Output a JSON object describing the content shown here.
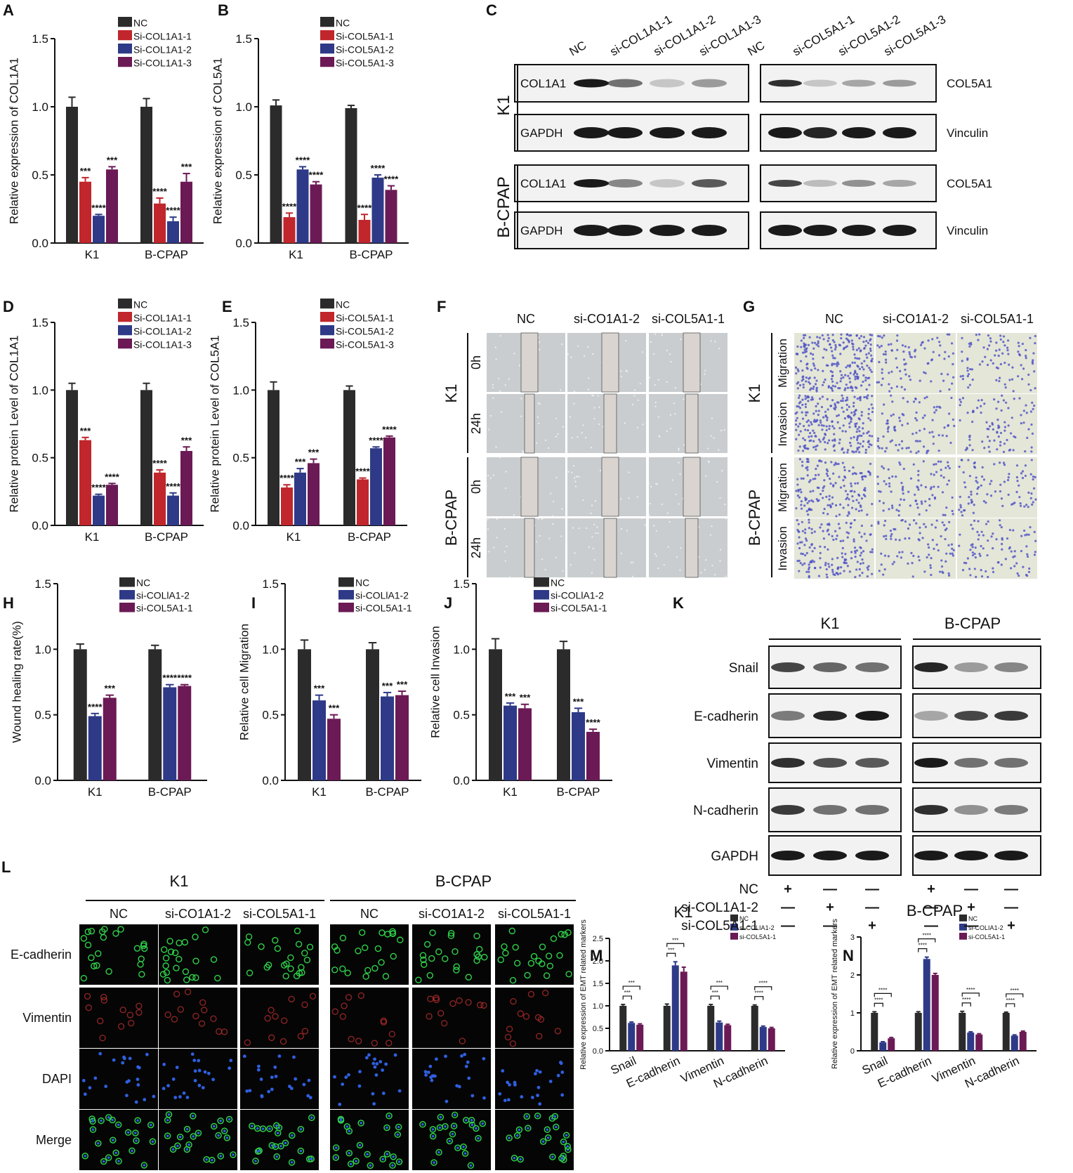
{
  "panel_letters": [
    "A",
    "B",
    "C",
    "D",
    "E",
    "F",
    "G",
    "H",
    "I",
    "J",
    "K",
    "L",
    "M",
    "N"
  ],
  "colors": {
    "NC": "#2b2b2b",
    "red": "#c0262c",
    "blue": "#2e3a87",
    "purple": "#6b1a55",
    "band": "#1a1a1a",
    "if_green": "#2fd14a",
    "if_red": "#c43030",
    "if_blue": "#2f5fe0",
    "stain": "#4b4fc4"
  },
  "chart_data": [
    {
      "panel": "A",
      "type": "bar",
      "categories": [
        "K1",
        "B-CPAP"
      ],
      "ylabel": "Relative expression of COL1A1",
      "ylim": [
        0,
        1.5
      ],
      "yticks": [
        "0.0",
        "0.5",
        "1.0",
        "1.5"
      ],
      "legend_position": "top-right",
      "series": [
        {
          "name": "NC",
          "values": [
            1.0,
            1.0
          ],
          "errors": [
            0.07,
            0.06
          ],
          "sig": [
            "",
            ""
          ]
        },
        {
          "name": "Si-COL1A1-1",
          "values": [
            0.45,
            0.29
          ],
          "errors": [
            0.03,
            0.04
          ],
          "sig": [
            "***",
            "****"
          ]
        },
        {
          "name": "Si-COL1A1-2",
          "values": [
            0.2,
            0.16
          ],
          "errors": [
            0.01,
            0.03
          ],
          "sig": [
            "****",
            "****"
          ]
        },
        {
          "name": "Si-COL1A1-3",
          "values": [
            0.54,
            0.45
          ],
          "errors": [
            0.02,
            0.06
          ],
          "sig": [
            "***",
            "***"
          ]
        }
      ]
    },
    {
      "panel": "B",
      "type": "bar",
      "categories": [
        "K1",
        "B-CPAP"
      ],
      "ylabel": "Relative expression of COL5A1",
      "ylim": [
        0,
        1.5
      ],
      "yticks": [
        "0.0",
        "0.5",
        "1.0",
        "1.5"
      ],
      "legend_position": "top-right",
      "series": [
        {
          "name": "NC",
          "values": [
            1.01,
            0.99
          ],
          "errors": [
            0.04,
            0.02
          ],
          "sig": [
            "",
            ""
          ]
        },
        {
          "name": "Si-COL5A1-1",
          "values": [
            0.19,
            0.17
          ],
          "errors": [
            0.03,
            0.04
          ],
          "sig": [
            "****",
            "****"
          ]
        },
        {
          "name": "Si-COL5A1-2",
          "values": [
            0.54,
            0.48
          ],
          "errors": [
            0.02,
            0.02
          ],
          "sig": [
            "****",
            "****"
          ]
        },
        {
          "name": "Si-COL5A1-3",
          "values": [
            0.43,
            0.39
          ],
          "errors": [
            0.02,
            0.03
          ],
          "sig": [
            "****",
            "****"
          ]
        }
      ]
    },
    {
      "panel": "D",
      "type": "bar",
      "categories": [
        "K1",
        "B-CPAP"
      ],
      "ylabel": "Relative protein Level of COL1A1",
      "ylim": [
        0,
        1.5
      ],
      "yticks": [
        "0.0",
        "0.5",
        "1.0",
        "1.5"
      ],
      "legend_position": "top-right",
      "series": [
        {
          "name": "NC",
          "values": [
            1.0,
            1.0
          ],
          "errors": [
            0.05,
            0.05
          ],
          "sig": [
            "",
            ""
          ]
        },
        {
          "name": "Si-COL1A1-1",
          "values": [
            0.63,
            0.39
          ],
          "errors": [
            0.02,
            0.02
          ],
          "sig": [
            "***",
            "****"
          ]
        },
        {
          "name": "Si-COL1A1-2",
          "values": [
            0.22,
            0.22
          ],
          "errors": [
            0.01,
            0.02
          ],
          "sig": [
            "****",
            "****"
          ]
        },
        {
          "name": "Si-COL1A1-3",
          "values": [
            0.3,
            0.55
          ],
          "errors": [
            0.01,
            0.03
          ],
          "sig": [
            "****",
            "***"
          ]
        }
      ]
    },
    {
      "panel": "E",
      "type": "bar",
      "categories": [
        "K1",
        "B-CPAP"
      ],
      "ylabel": "Relative protein Level of COL5A1",
      "ylim": [
        0,
        1.5
      ],
      "yticks": [
        "0.0",
        "0.5",
        "1.0",
        "1.5"
      ],
      "legend_position": "top-right",
      "series": [
        {
          "name": "NC",
          "values": [
            1.0,
            1.0
          ],
          "errors": [
            0.06,
            0.03
          ],
          "sig": [
            "",
            ""
          ]
        },
        {
          "name": "Si-COL5A1-1",
          "values": [
            0.28,
            0.34
          ],
          "errors": [
            0.02,
            0.01
          ],
          "sig": [
            "****",
            "****"
          ]
        },
        {
          "name": "Si-COL5A1-2",
          "values": [
            0.39,
            0.57
          ],
          "errors": [
            0.03,
            0.01
          ],
          "sig": [
            "***",
            "****"
          ]
        },
        {
          "name": "Si-COL5A1-3",
          "values": [
            0.46,
            0.65
          ],
          "errors": [
            0.03,
            0.01
          ],
          "sig": [
            "***",
            "****"
          ]
        }
      ]
    },
    {
      "panel": "H",
      "type": "bar",
      "categories": [
        "K1",
        "B-CPAP"
      ],
      "ylabel": "Wound healing rate(%)",
      "ylim": [
        0,
        1.5
      ],
      "yticks": [
        "0.0",
        "0.5",
        "1.0",
        "1.5"
      ],
      "legend_position": "top-right",
      "series": [
        {
          "name": "NC",
          "values": [
            1.0,
            1.0
          ],
          "errors": [
            0.04,
            0.03
          ],
          "sig": [
            "",
            ""
          ]
        },
        {
          "name": "si-COLlA1-2",
          "values": [
            0.49,
            0.71
          ],
          "errors": [
            0.02,
            0.02
          ],
          "sig": [
            "****",
            "****"
          ]
        },
        {
          "name": "si-COL5A1-1",
          "values": [
            0.63,
            0.72
          ],
          "errors": [
            0.02,
            0.01
          ],
          "sig": [
            "***",
            "****"
          ]
        }
      ]
    },
    {
      "panel": "I",
      "type": "bar",
      "categories": [
        "K1",
        "B-CPAP"
      ],
      "ylabel": "Relative cell Migration",
      "ylim": [
        0,
        1.5
      ],
      "yticks": [
        "0.0",
        "0.5",
        "1.0",
        "1.5"
      ],
      "legend_position": "top-right",
      "series": [
        {
          "name": "NC",
          "values": [
            1.0,
            1.0
          ],
          "errors": [
            0.07,
            0.05
          ],
          "sig": [
            "",
            ""
          ]
        },
        {
          "name": "si-COLlA1-2",
          "values": [
            0.61,
            0.64
          ],
          "errors": [
            0.04,
            0.03
          ],
          "sig": [
            "***",
            "***"
          ]
        },
        {
          "name": "si-COL5A1-1",
          "values": [
            0.47,
            0.65
          ],
          "errors": [
            0.03,
            0.03
          ],
          "sig": [
            "***",
            "***"
          ]
        }
      ]
    },
    {
      "panel": "J",
      "type": "bar",
      "categories": [
        "K1",
        "B-CPAP"
      ],
      "ylabel": "Relative cell Invasion",
      "ylim": [
        0,
        1.5
      ],
      "yticks": [
        "0.0",
        "0.5",
        "1.0",
        "1.5"
      ],
      "legend_position": "top-right",
      "series": [
        {
          "name": "NC",
          "values": [
            1.0,
            1.0
          ],
          "errors": [
            0.08,
            0.06
          ],
          "sig": [
            "",
            ""
          ]
        },
        {
          "name": "si-COLlA1-2",
          "values": [
            0.57,
            0.52
          ],
          "errors": [
            0.02,
            0.03
          ],
          "sig": [
            "***",
            "***"
          ]
        },
        {
          "name": "si-COL5A1-1",
          "values": [
            0.55,
            0.37
          ],
          "errors": [
            0.03,
            0.02
          ],
          "sig": [
            "***",
            "****"
          ]
        }
      ]
    },
    {
      "panel": "M",
      "type": "bar",
      "title": "K1",
      "categories": [
        "Snail",
        "E-cadherin",
        "Vimentin",
        "N-cadherin"
      ],
      "ylabel": "Relative expression of EMT related markers",
      "ylim": [
        0,
        2.5
      ],
      "yticks": [
        "0.0",
        "0.5",
        "1.0",
        "1.5",
        "2.0",
        "2.5"
      ],
      "legend_position": "top-right",
      "series": [
        {
          "name": "NC",
          "values": [
            1.0,
            1.0,
            1.0,
            1.0
          ],
          "errors": [
            0.03,
            0.04,
            0.03,
            0.02
          ]
        },
        {
          "name": "si-COLIA1-2",
          "values": [
            0.62,
            1.9,
            0.63,
            0.53
          ],
          "errors": [
            0.02,
            0.08,
            0.03,
            0.02
          ]
        },
        {
          "name": "si-COL5A1-1",
          "values": [
            0.58,
            1.76,
            0.57,
            0.5
          ],
          "errors": [
            0.02,
            0.1,
            0.02,
            0.02
          ]
        }
      ],
      "brackets": [
        {
          "cat": 0,
          "lines": [
            "***",
            "***"
          ]
        },
        {
          "cat": 1,
          "lines": [
            "***",
            "***"
          ]
        },
        {
          "cat": 2,
          "lines": [
            "***",
            "***"
          ]
        },
        {
          "cat": 3,
          "lines": [
            "****",
            "****"
          ]
        }
      ]
    },
    {
      "panel": "N",
      "type": "bar",
      "title": "B-CPAP",
      "categories": [
        "Snail",
        "E-cadherin",
        "Vimentin",
        "N-cadherin"
      ],
      "ylabel": "Relative expression of EMT related markers",
      "ylim": [
        0,
        3
      ],
      "yticks": [
        "0",
        "1",
        "2",
        "3"
      ],
      "legend_position": "top-right",
      "series": [
        {
          "name": "NC",
          "values": [
            1.0,
            1.0,
            1.0,
            1.0
          ],
          "errors": [
            0.03,
            0.03,
            0.04,
            0.02
          ]
        },
        {
          "name": "si-COLIA1-2",
          "values": [
            0.22,
            2.42,
            0.48,
            0.4
          ],
          "errors": [
            0.02,
            0.05,
            0.02,
            0.02
          ]
        },
        {
          "name": "si-COL5A1-1",
          "values": [
            0.33,
            2.0,
            0.43,
            0.5
          ],
          "errors": [
            0.02,
            0.04,
            0.02,
            0.02
          ]
        }
      ],
      "brackets": [
        {
          "cat": 0,
          "lines": [
            "****",
            "****"
          ]
        },
        {
          "cat": 1,
          "lines": [
            "****",
            "****"
          ]
        },
        {
          "cat": 2,
          "lines": [
            "****",
            "****"
          ]
        },
        {
          "cat": 3,
          "lines": [
            "****",
            "****"
          ]
        }
      ]
    }
  ],
  "blot_c": {
    "lanes_left": [
      "NC",
      "si-COL1A1-1",
      "si-COL1A1-2",
      "si-COL1A1-3"
    ],
    "lanes_right": [
      "NC",
      "si-COL5A1-1",
      "si-COL5A1-2",
      "si-COL5A1-3"
    ],
    "groups": [
      "K1",
      "B-CPAP"
    ],
    "left_rows": [
      "COL1A1",
      "GAPDH",
      "COL1A1",
      "GAPDH"
    ],
    "right_rows": [
      "COL5A1",
      "Vinculin",
      "COL5A1",
      "Vinculin"
    ],
    "left_intensity": [
      [
        1.0,
        0.6,
        0.2,
        0.4
      ],
      [
        1.0,
        1.0,
        1.0,
        1.0
      ],
      [
        1.0,
        0.5,
        0.2,
        0.7
      ],
      [
        1.0,
        1.0,
        1.0,
        1.0
      ]
    ],
    "right_intensity": [
      [
        0.9,
        0.2,
        0.35,
        0.4
      ],
      [
        1.0,
        0.95,
        1.0,
        1.0
      ],
      [
        0.8,
        0.25,
        0.45,
        0.35
      ],
      [
        1.0,
        1.0,
        1.0,
        1.0
      ]
    ]
  },
  "wound_f": {
    "columns": [
      "NC",
      "si-CO1A1-2",
      "si-COL5A1-1"
    ],
    "groups": [
      "K1",
      "B-CPAP"
    ],
    "times": [
      "0h",
      "24h",
      "0h",
      "24h"
    ]
  },
  "transwell_g": {
    "columns": [
      "NC",
      "si-CO1A1-2",
      "si-COL5A1-1"
    ],
    "groups": [
      "K1",
      "B-CPAP"
    ],
    "rows": [
      "Migration",
      "Invasion",
      "Migration",
      "Invasion"
    ]
  },
  "blot_k": {
    "groups": [
      "K1",
      "B-CPAP"
    ],
    "rows": [
      "Snail",
      "E-cadherin",
      "Vimentin",
      "N-cadherin",
      "GAPDH"
    ],
    "treatments": [
      "NC",
      "si-COL1A1-2",
      "si-COL5A1-1"
    ],
    "signs": [
      [
        "+",
        "—",
        "—",
        "+",
        "—",
        "—"
      ],
      [
        "—",
        "+",
        "—",
        "—",
        "+",
        "—"
      ],
      [
        "—",
        "—",
        "+",
        "—",
        "—",
        "+"
      ]
    ],
    "intensity": [
      [
        0.8,
        0.65,
        0.6,
        0.95,
        0.4,
        0.5
      ],
      [
        0.55,
        0.95,
        1.0,
        0.35,
        0.8,
        0.85
      ],
      [
        0.9,
        0.75,
        0.7,
        1.0,
        0.6,
        0.6
      ],
      [
        0.85,
        0.6,
        0.6,
        0.9,
        0.45,
        0.55
      ],
      [
        1.0,
        1.0,
        1.0,
        1.0,
        1.0,
        1.0
      ]
    ]
  },
  "if_l": {
    "groups": [
      "K1",
      "B-CPAP"
    ],
    "columns": [
      "NC",
      "si-CO1A1-2",
      "si-COL5A1-1",
      "NC",
      "si-CO1A1-2",
      "si-COL5A1-1"
    ],
    "rows": [
      "E-cadherin",
      "Vimentin",
      "DAPI",
      "Merge"
    ]
  }
}
